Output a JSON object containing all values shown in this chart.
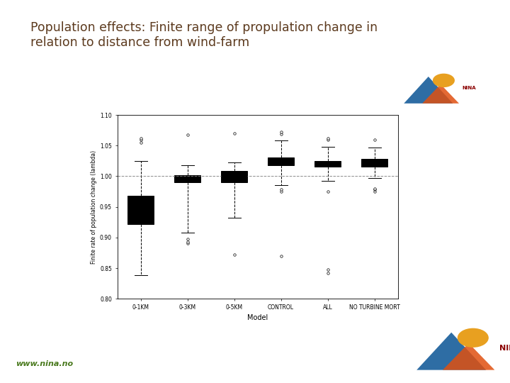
{
  "title_line1": "Population effects: Finite range of propulation change in",
  "title_line2": "relation to distance from wind-farm",
  "title_color": "#5C3A1E",
  "title_bg": "#B8EEF4",
  "title_stripe_bg": "#C8C8C8",
  "slide_bg": "#FFFFFF",
  "xlabel": "Model",
  "ylabel": "Finite rate of population change (lambda)",
  "categories": [
    "0-1KM",
    "0-3KM",
    "0-5KM",
    "CONTROL",
    "ALL",
    "NO TURBINE MORT"
  ],
  "ylim": [
    0.8,
    1.1
  ],
  "yticks": [
    0.8,
    0.85,
    0.9,
    0.95,
    1.0,
    1.05,
    1.1
  ],
  "ytick_labels": [
    "0.80",
    "0.85",
    "0.90",
    "0.95",
    "1.00",
    "1.05",
    "1.10"
  ],
  "hline_y": 1.0,
  "box_data": {
    "0-1KM": {
      "q1": 0.922,
      "median": 0.94,
      "q3": 0.968,
      "whislo": 0.838,
      "whishi": 1.025,
      "fliers_high": [
        1.055,
        1.06,
        1.062
      ],
      "fliers_low": []
    },
    "0-3KM": {
      "q1": 0.99,
      "median": 0.997,
      "q3": 1.002,
      "whislo": 0.908,
      "whishi": 1.018,
      "fliers_high": [
        1.068
      ],
      "fliers_low": [
        0.89,
        0.893,
        0.898
      ]
    },
    "0-5KM": {
      "q1": 0.99,
      "median": 1.0,
      "q3": 1.008,
      "whislo": 0.932,
      "whishi": 1.023,
      "fliers_high": [
        1.07
      ],
      "fliers_low": [
        0.872
      ]
    },
    "CONTROL": {
      "q1": 1.018,
      "median": 1.022,
      "q3": 1.03,
      "whislo": 0.985,
      "whishi": 1.058,
      "fliers_high": [
        1.069,
        1.072
      ],
      "fliers_low": [
        0.87,
        0.975,
        0.978
      ]
    },
    "ALL": {
      "q1": 1.015,
      "median": 1.02,
      "q3": 1.025,
      "whislo": 0.992,
      "whishi": 1.048,
      "fliers_high": [
        1.06,
        1.062
      ],
      "fliers_low": [
        0.842,
        0.848,
        0.975
      ]
    },
    "NO TURBINE MORT": {
      "q1": 1.015,
      "median": 1.02,
      "q3": 1.028,
      "whislo": 0.997,
      "whishi": 1.047,
      "fliers_high": [
        1.06
      ],
      "fliers_low": [
        0.975,
        0.978,
        0.98
      ]
    }
  },
  "watermark": "www.nina.no",
  "watermark_color": "#4A7A1E"
}
